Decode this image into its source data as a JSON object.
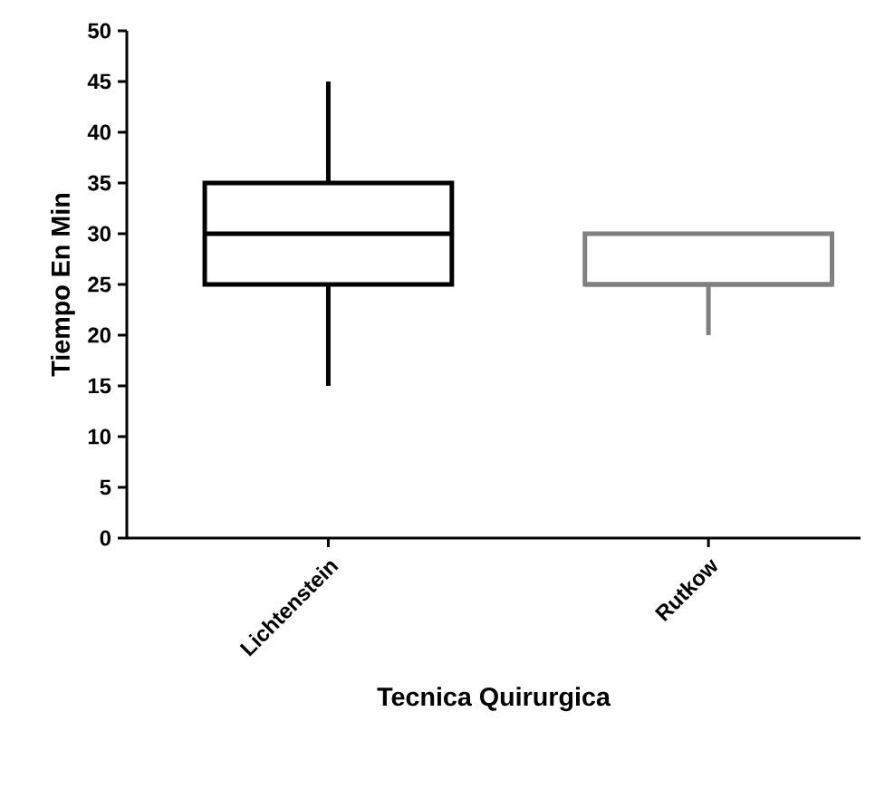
{
  "chart_data": {
    "type": "box",
    "xlabel": "Tecnica Quirurgica",
    "ylabel": "Tiempo En Min",
    "categories": [
      "Lichtenstein",
      "Rutkow"
    ],
    "boxes": [
      {
        "low": 15,
        "q1": 25,
        "median": 30,
        "q3": 35,
        "high": 45
      },
      {
        "low": 20,
        "q1": 25,
        "median": 25,
        "q3": 30,
        "high": 30
      }
    ],
    "colors": [
      "#000000",
      "#808080"
    ],
    "ylim": [
      0,
      50
    ],
    "yticks": [
      0,
      5,
      10,
      15,
      20,
      25,
      30,
      35,
      40,
      45,
      50
    ],
    "grid": false
  }
}
